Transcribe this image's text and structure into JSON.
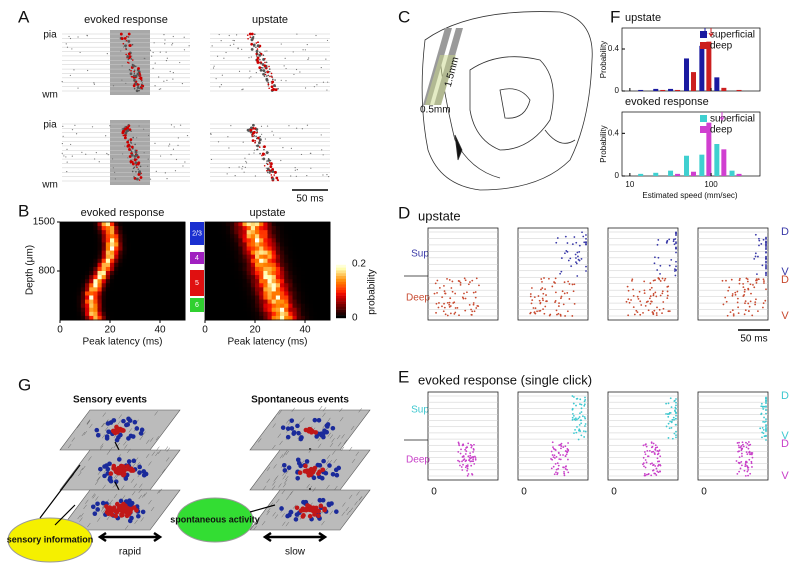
{
  "A": {
    "label": "A",
    "titles": [
      "evoked response",
      "upstate"
    ],
    "pia": [
      "pia",
      "pia"
    ],
    "wm": [
      "wm",
      "wm"
    ],
    "scale": "50 ms"
  },
  "B": {
    "label": "B",
    "titles": [
      "evoked response",
      "upstate"
    ],
    "ylabel": "Depth (μm)",
    "ylim": [
      100,
      1500
    ],
    "yticks": [
      800,
      1500
    ],
    "xlabel": "Peak latency (ms)",
    "xlim": [
      0,
      50
    ],
    "xticks": [
      0,
      20,
      40
    ],
    "layers": [
      "2/3",
      "4",
      "5",
      "6"
    ],
    "colorbar": {
      "ticks": [
        "0.2",
        "0"
      ],
      "label": "probability"
    }
  },
  "C": {
    "label": "C",
    "width": "0.5mm",
    "depth": "1.5mm"
  },
  "F": {
    "label": "F",
    "ylabel": "Probability",
    "xlabel": "Estimated speed (mm/sec)",
    "xlim": [
      8,
      400
    ],
    "xticks": [
      10,
      100
    ],
    "log_x": true,
    "ylim": [
      0,
      0.6
    ],
    "yticks": [
      0,
      0.4
    ],
    "bins": [
      15,
      23,
      35,
      55,
      85,
      130,
      200
    ],
    "plots": [
      {
        "type": "bar",
        "title": "upstate",
        "series": [
          {
            "name": "superficial",
            "color": "#1a1aa0",
            "values": [
              0.01,
              0.02,
              0.02,
              0.31,
              0.43,
              0.13,
              0
            ]
          },
          {
            "name": "deep",
            "color": "#cc1f1f",
            "values": [
              0,
              0.01,
              0.01,
              0.18,
              0.47,
              0.03,
              0.01
            ]
          }
        ]
      },
      {
        "type": "bar",
        "title": "evoked response",
        "series": [
          {
            "name": "superficial",
            "color": "#3fd0d0",
            "values": [
              0.02,
              0.03,
              0.05,
              0.19,
              0.2,
              0.3,
              0.05
            ]
          },
          {
            "name": "deep",
            "color": "#d03fd0",
            "values": [
              0,
              0,
              0.02,
              0.04,
              0.5,
              0.25,
              0.02
            ]
          }
        ]
      }
    ]
  },
  "D": {
    "label": "D",
    "title": "upstate",
    "sup": "Sup",
    "deep": "Deep",
    "marks": [
      "D",
      "V",
      "D",
      "V"
    ],
    "scale": "50 ms"
  },
  "E": {
    "label": "E",
    "title": "evoked response (single click)",
    "sup": "Sup",
    "deep": "Deep",
    "marks": [
      "D",
      "V",
      "D",
      "V"
    ],
    "zeros": [
      "0",
      "0",
      "0",
      "0"
    ]
  },
  "G": {
    "label": "G",
    "titles": [
      "Sensory events",
      "Spontaneous events"
    ],
    "sources": [
      "sensory information",
      "spontaneous activity"
    ],
    "speeds": [
      "rapid",
      "slow"
    ]
  }
}
